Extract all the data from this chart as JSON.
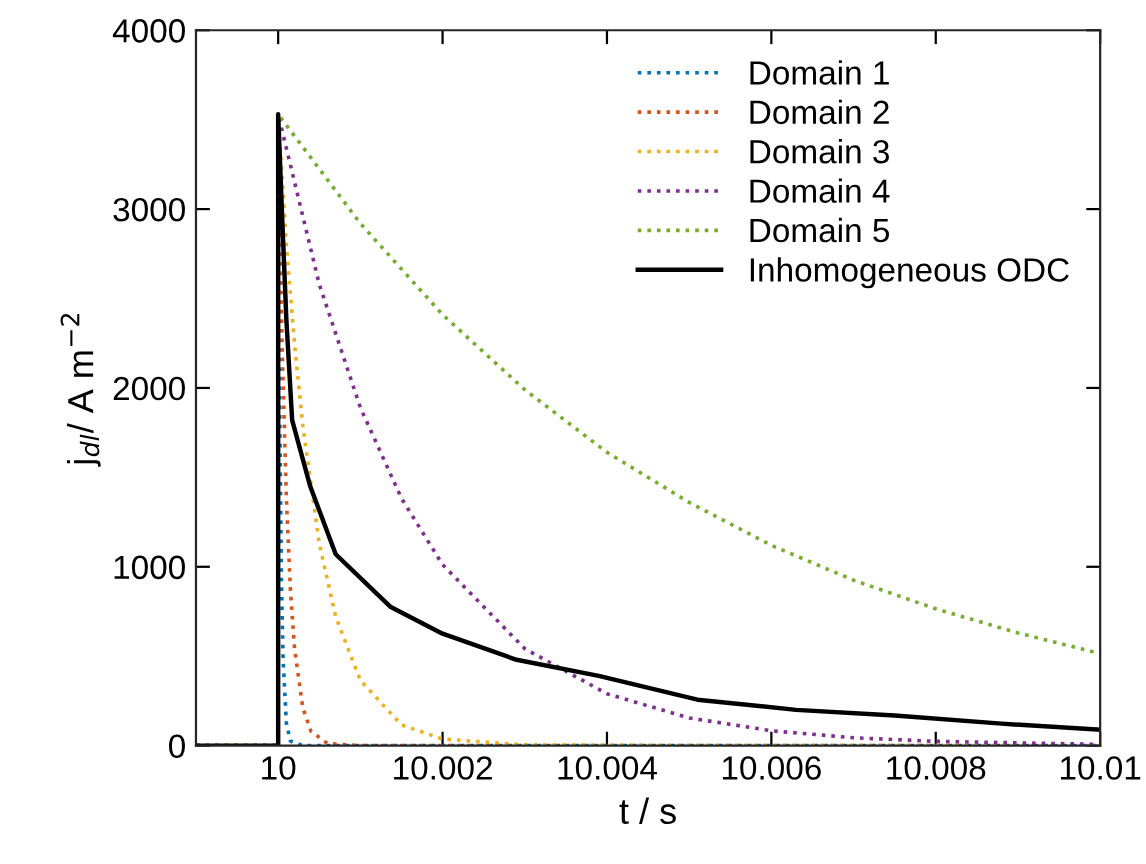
{
  "chart_data": {
    "type": "line",
    "xlabel": "t / s",
    "ylabel": "j$_{dl}$/ A m$^{−2}$",
    "xlim": [
      9.999,
      10.01
    ],
    "xticks": [
      10,
      10.002,
      10.004,
      10.006,
      10.008,
      10.01
    ],
    "ylim": [
      0,
      4000
    ],
    "yticks": [
      0,
      1000,
      2000,
      3000,
      4000
    ],
    "grid": false,
    "legend": "top right",
    "marker": "none",
    "series": [
      {
        "name": "Domain 1",
        "color": "#0072bd",
        "line_style": "dotted",
        "x": [
          9.999,
          10,
          10,
          10.00002,
          10.00004,
          10.00006,
          10.0001,
          10.00015,
          10.0003,
          10.01
        ],
        "values": [
          0,
          0,
          3530,
          1810,
          930,
          480,
          125,
          25,
          0,
          0
        ]
      },
      {
        "name": "Domain 2",
        "color": "#d95319",
        "line_style": "dotted",
        "x": [
          9.999,
          10,
          10,
          10.00005,
          10.0001,
          10.00015,
          10.0002,
          10.0003,
          10.0004,
          10.0006,
          10.001,
          10.01
        ],
        "values": [
          0,
          0,
          3530,
          2200,
          1380,
          860,
          540,
          210,
          80,
          12,
          0,
          0
        ]
      },
      {
        "name": "Domain 3",
        "color": "#edb120",
        "line_style": "dotted",
        "x": [
          9.999,
          10,
          10,
          10.0001,
          10.0002,
          10.0003,
          10.0005,
          10.0007,
          10.001,
          10.0015,
          10.002,
          10.003,
          10.005,
          10.01
        ],
        "values": [
          0,
          0,
          3530,
          2800,
          2240,
          1790,
          1130,
          720,
          365,
          116,
          37,
          4,
          0,
          0
        ]
      },
      {
        "name": "Domain 4",
        "color": "#7e2f8e",
        "line_style": "dotted",
        "x": [
          9.999,
          10,
          10,
          10.0005,
          10.001,
          10.0015,
          10.002,
          10.003,
          10.004,
          10.005,
          10.006,
          10.007,
          10.008,
          10.01
        ],
        "values": [
          0,
          0,
          3530,
          2580,
          1890,
          1383,
          1012,
          542,
          290,
          155,
          83,
          44,
          24,
          7
        ]
      },
      {
        "name": "Domain 5",
        "color": "#77ac30",
        "line_style": "dotted",
        "x": [
          9.999,
          10,
          10,
          10.001,
          10.002,
          10.003,
          10.004,
          10.005,
          10.006,
          10.007,
          10.008,
          10.009,
          10.01
        ],
        "values": [
          0,
          0,
          3530,
          2920,
          2410,
          1990,
          1640,
          1360,
          1120,
          925,
          765,
          630,
          515
        ]
      },
      {
        "name": "Inhomogeneous ODC",
        "color": "#000000",
        "line_style": "solid",
        "x": [
          9.999,
          10,
          10,
          10.00005,
          10.0001,
          10.00017,
          10.00039,
          10.0007,
          10.00137,
          10.002,
          10.0029,
          10.0039,
          10.0051,
          10.0063,
          10.0075,
          10.0088,
          10.01
        ],
        "values": [
          0,
          0,
          3530,
          2940,
          2380,
          1820,
          1450,
          1070,
          775,
          626,
          480,
          390,
          257,
          200,
          168,
          123,
          89
        ]
      }
    ]
  }
}
